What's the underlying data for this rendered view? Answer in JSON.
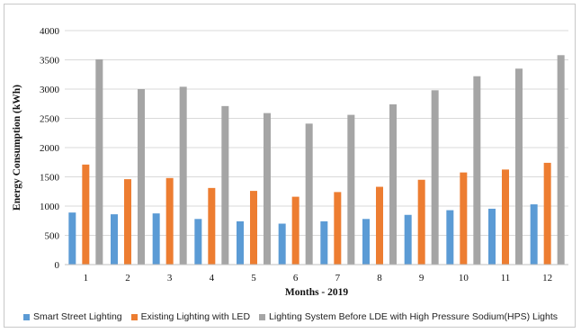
{
  "chart_data": {
    "type": "bar",
    "title": "",
    "xlabel": "Months - 2019",
    "ylabel": "Energy Consumption (kWh)",
    "ylim": [
      0,
      4000
    ],
    "yticks": [
      "0",
      "500",
      "1000",
      "1500",
      "2000",
      "2500",
      "3000",
      "3500",
      "4000"
    ],
    "categories": [
      "1",
      "2",
      "3",
      "4",
      "5",
      "6",
      "7",
      "8",
      "9",
      "10",
      "11",
      "12"
    ],
    "grid": true,
    "legend_position": "bottom",
    "series": [
      {
        "name": "Smart Street Lighting",
        "color": "#5b9bd5",
        "values": [
          890,
          860,
          875,
          780,
          740,
          700,
          740,
          780,
          850,
          930,
          955,
          1030
        ]
      },
      {
        "name": "Existing Lighting with LED",
        "color": "#ed7d31",
        "values": [
          1710,
          1460,
          1480,
          1310,
          1260,
          1160,
          1240,
          1330,
          1450,
          1575,
          1625,
          1740
        ]
      },
      {
        "name": "Lighting System Before LDE with High Pressure Sodium(HPS) Lights",
        "color": "#a5a5a5",
        "values": [
          3510,
          3000,
          3040,
          2710,
          2590,
          2410,
          2560,
          2740,
          2980,
          3220,
          3350,
          3580
        ]
      }
    ]
  }
}
